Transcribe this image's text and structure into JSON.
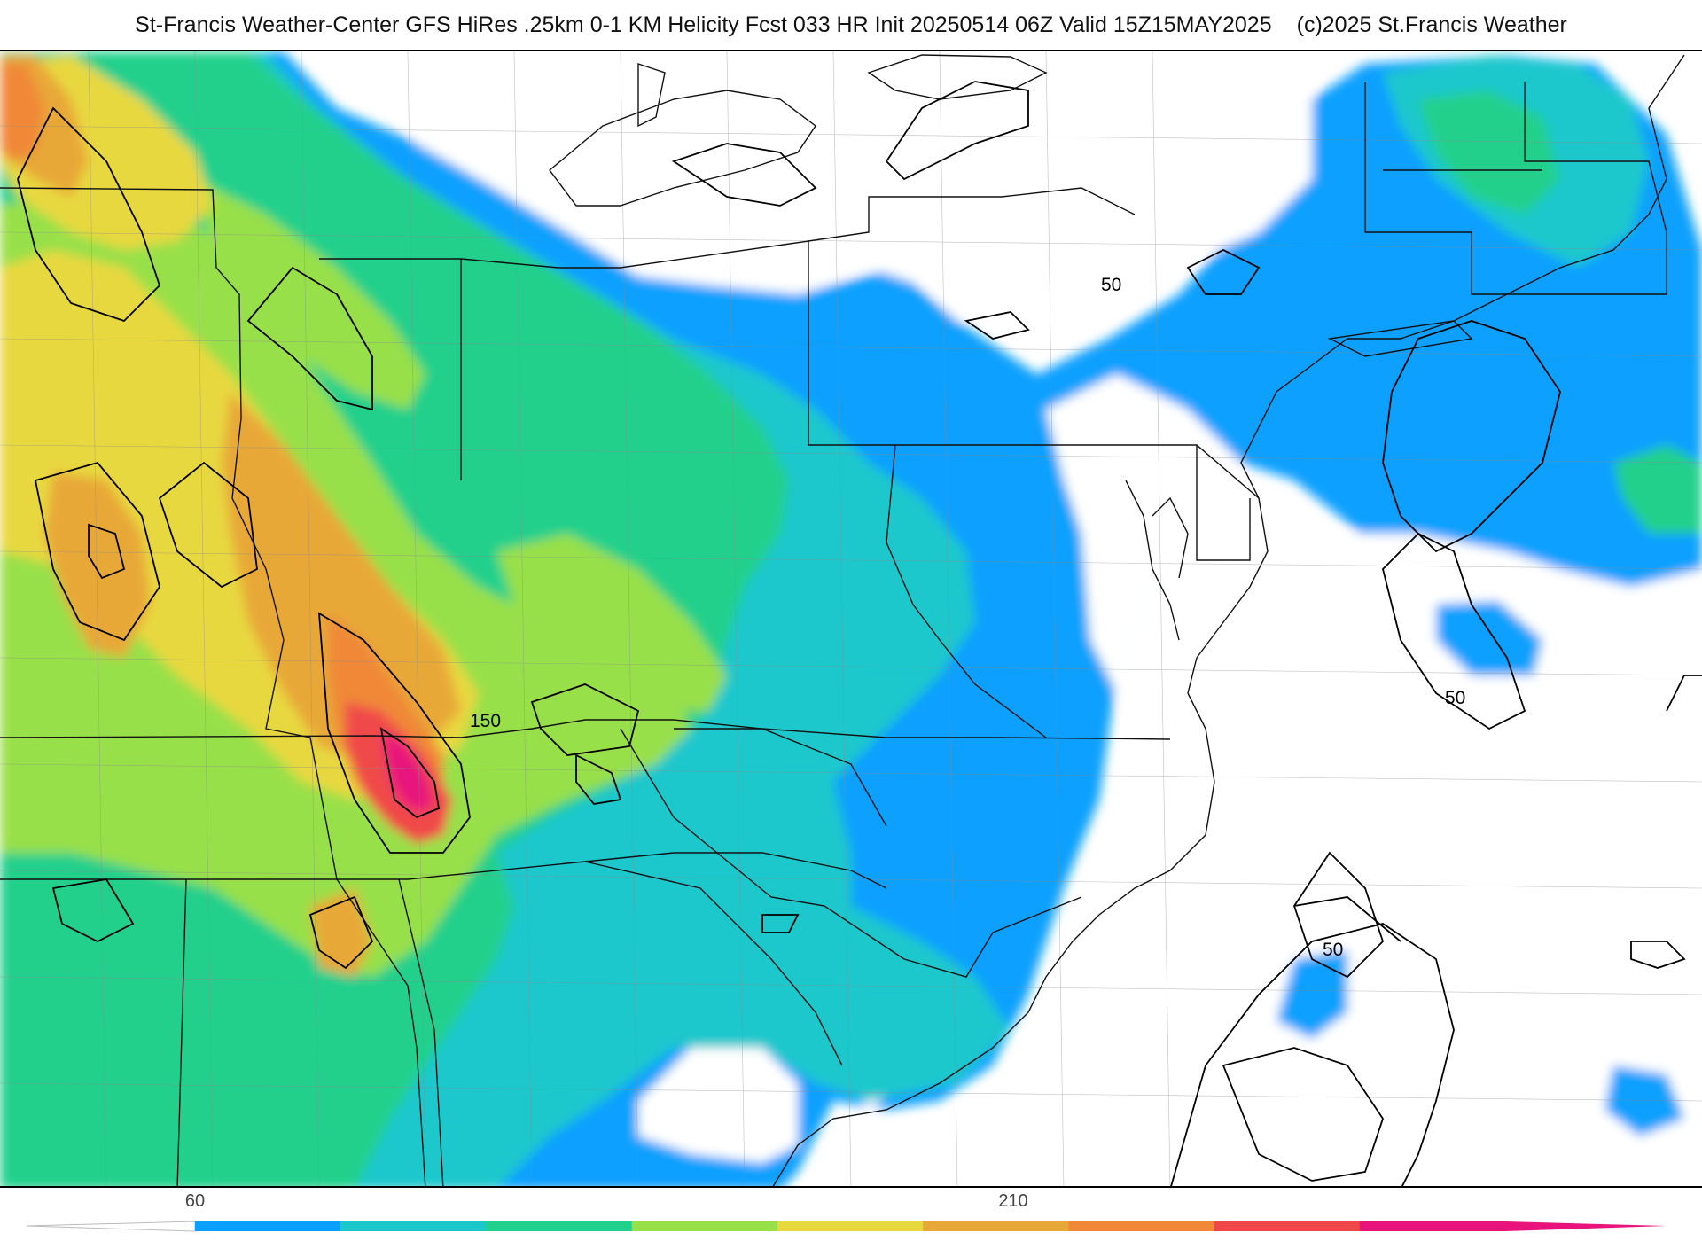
{
  "header": {
    "title": "St-Francis Weather-Center GFS HiRes .25km 0-1 KM Helicity Fcst 033 HR Init 20250514 06Z  Valid 15Z15MAY2025",
    "copyright": "(c)2025 St.Francis Weather"
  },
  "map": {
    "contour_labels": [
      "50",
      "150",
      "50",
      "50"
    ]
  },
  "colorbar": {
    "tick_labels": [
      "60",
      "210"
    ],
    "colors": [
      "#0aa0ff",
      "#1ac8cc",
      "#20d08c",
      "#98e048",
      "#e8d840",
      "#e8a838",
      "#f08838",
      "#f04848",
      "#e8147c"
    ]
  }
}
